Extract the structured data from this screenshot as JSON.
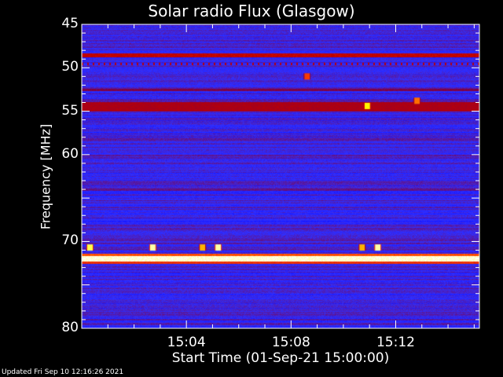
{
  "chart_data": {
    "type": "heatmap",
    "title": "Solar radio Flux (Glasgow)",
    "xlabel": "Start Time (01-Sep-21 15:00:00)",
    "ylabel": "Frequency [MHz]",
    "x_unit": "minutes after 15:00",
    "xlim": [
      "15:00",
      "15:15:12"
    ],
    "ylim": [
      45,
      80
    ],
    "y_inverted": true,
    "xticks": [
      "15:04",
      "15:08",
      "15:12"
    ],
    "xtick_minutes": [
      4,
      8,
      12
    ],
    "yticks": [
      45,
      50,
      55,
      60,
      70,
      80
    ],
    "grid": false,
    "colormap": [
      "#000080",
      "#0000ff",
      "#3030ff",
      "#800040",
      "#c00000",
      "#ff4000",
      "#ffff00",
      "#ffffff"
    ],
    "background_level": 0.3,
    "bands": [
      {
        "freq_mhz": [
          45.0,
          45.3
        ],
        "level": 0.2
      },
      {
        "freq_mhz": [
          48.3,
          48.8
        ],
        "level": 0.6
      },
      {
        "freq_mhz": [
          49.4,
          49.7
        ],
        "level": 0.55,
        "pattern": "dotted"
      },
      {
        "freq_mhz": [
          52.4,
          52.7
        ],
        "level": 0.45
      },
      {
        "freq_mhz": [
          53.9,
          55.0
        ],
        "level": 0.55
      },
      {
        "freq_mhz": [
          63.9,
          64.2
        ],
        "level": 0.4
      },
      {
        "freq_mhz": [
          71.4,
          71.7
        ],
        "level": 0.75
      },
      {
        "freq_mhz": [
          71.7,
          72.3
        ],
        "level": 1.0
      },
      {
        "freq_mhz": [
          72.3,
          72.6
        ],
        "level": 0.7
      },
      {
        "freq_mhz": [
          75.6,
          75.9
        ],
        "level": 0.15
      }
    ],
    "bursts": [
      {
        "time_min": 0.3,
        "freq_mhz": 70.7,
        "level": 0.9
      },
      {
        "time_min": 2.7,
        "freq_mhz": 70.7,
        "level": 0.95
      },
      {
        "time_min": 4.6,
        "freq_mhz": 70.7,
        "level": 0.8
      },
      {
        "time_min": 5.2,
        "freq_mhz": 70.7,
        "level": 0.95
      },
      {
        "time_min": 10.7,
        "freq_mhz": 70.7,
        "level": 0.8
      },
      {
        "time_min": 11.3,
        "freq_mhz": 70.7,
        "level": 0.95
      },
      {
        "time_min": 8.6,
        "freq_mhz": 51.0,
        "level": 0.7
      },
      {
        "time_min": 10.9,
        "freq_mhz": 54.4,
        "level": 0.85
      },
      {
        "time_min": 12.8,
        "freq_mhz": 53.8,
        "level": 0.75
      }
    ]
  },
  "footer": {
    "updated": "Updated Fri Sep 10 12:16:26 2021"
  }
}
